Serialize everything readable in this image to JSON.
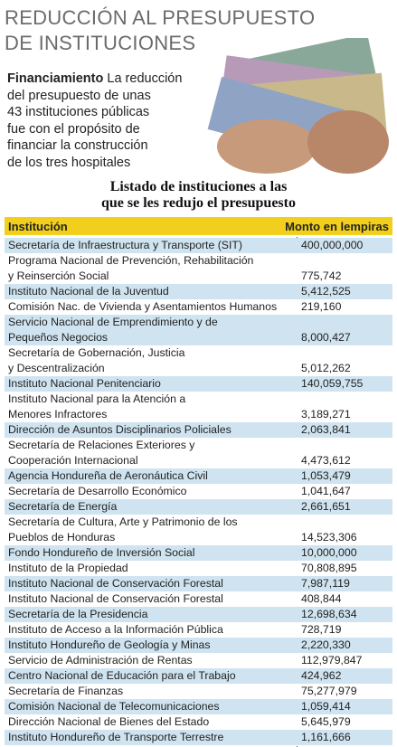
{
  "header": {
    "title": [
      "REDUCCIÓN AL PRESUPUESTO",
      "DE INSTITUCIONES"
    ]
  },
  "intro": {
    "lead": "Financiamiento",
    "lines": [
      "La reducción",
      "del presupuesto de unas",
      "43 instituciones públicas",
      "fue con el propósito de",
      "financiar la construcción",
      "de los tres hospitales"
    ]
  },
  "table": {
    "title": [
      "Listado de instituciones a las",
      "que se les redujo el presupuesto"
    ],
    "columns": [
      "Institución",
      "Monto en lempiras"
    ],
    "rows": [
      {
        "name": [
          "Secretaría de Infraestructura y Transporte (SIT)"
        ],
        "amount": "400,000,000"
      },
      {
        "name": [
          "Programa Nacional de Prevención, Rehabilitación",
          "y Reinserción Social"
        ],
        "amount": "775,742"
      },
      {
        "name": [
          "Instituto Nacional de la Juventud"
        ],
        "amount": "5,412,525"
      },
      {
        "name": [
          "Comisión Nac. de Vivienda y Asentamientos Humanos"
        ],
        "amount": "219,160"
      },
      {
        "name": [
          "Servicio Nacional de Emprendimiento y de",
          "Pequeños Negocios"
        ],
        "amount": "8,000,427"
      },
      {
        "name": [
          "Secretaría de Gobernación, Justicia",
          "y Descentralización"
        ],
        "amount": "5,012,262"
      },
      {
        "name": [
          "Instituto Nacional Penitenciario"
        ],
        "amount": "140,059,755"
      },
      {
        "name": [
          "Instituto Nacional para la Atención a",
          "Menores Infractores"
        ],
        "amount": "3,189,271"
      },
      {
        "name": [
          "Dirección de Asuntos Disciplinarios Policiales"
        ],
        "amount": "2,063,841"
      },
      {
        "name": [
          "Secretaría de Relaciones Exteriores y",
          "Cooperación Internacional"
        ],
        "amount": "4,473,612"
      },
      {
        "name": [
          "Agencia Hondureña de Aeronáutica Civil"
        ],
        "amount": "1,053,479"
      },
      {
        "name": [
          "Secretaría de Desarrollo Económico"
        ],
        "amount": "1,041,647"
      },
      {
        "name": [
          "Secretaría de Energía"
        ],
        "amount": "2,661,651"
      },
      {
        "name": [
          "Secretaría de Cultura, Arte y Patrimonio de los",
          "Pueblos de Honduras"
        ],
        "amount": "14,523,306"
      },
      {
        "name": [
          "Fondo Hondureño de Inversión Social"
        ],
        "amount": "10,000,000"
      },
      {
        "name": [
          "Instituto de la Propiedad"
        ],
        "amount": "70,808,895"
      },
      {
        "name": [
          "Instituto Nacional de Conservación Forestal"
        ],
        "amount": "7,987,119"
      },
      {
        "name": [
          "Instituto Nacional de Conservación Forestal"
        ],
        "amount": "408,844"
      },
      {
        "name": [
          "Secretaría de la Presidencia"
        ],
        "amount": "12,698,634"
      },
      {
        "name": [
          "Instituto de Acceso a la Información Pública"
        ],
        "amount": "728,719"
      },
      {
        "name": [
          "Instituto Hondureño de Geología y Minas"
        ],
        "amount": "2,220,330"
      },
      {
        "name": [
          "Servicio de Administración de Rentas"
        ],
        "amount": "112,979,847"
      },
      {
        "name": [
          "Centro Nacional de Educación para el Trabajo"
        ],
        "amount": "424,962"
      },
      {
        "name": [
          "Secretaría de Finanzas"
        ],
        "amount": "75,277,979"
      },
      {
        "name": [
          "Comisión Nacional de Telecomunicaciones"
        ],
        "amount": "1,059,414"
      },
      {
        "name": [
          "Dirección Nacional de Bienes del Estado"
        ],
        "amount": "5,645,979"
      },
      {
        "name": [
          "Instituto Hondureño de Transporte Terrestre"
        ],
        "amount": "1,161,666"
      }
    ]
  }
}
